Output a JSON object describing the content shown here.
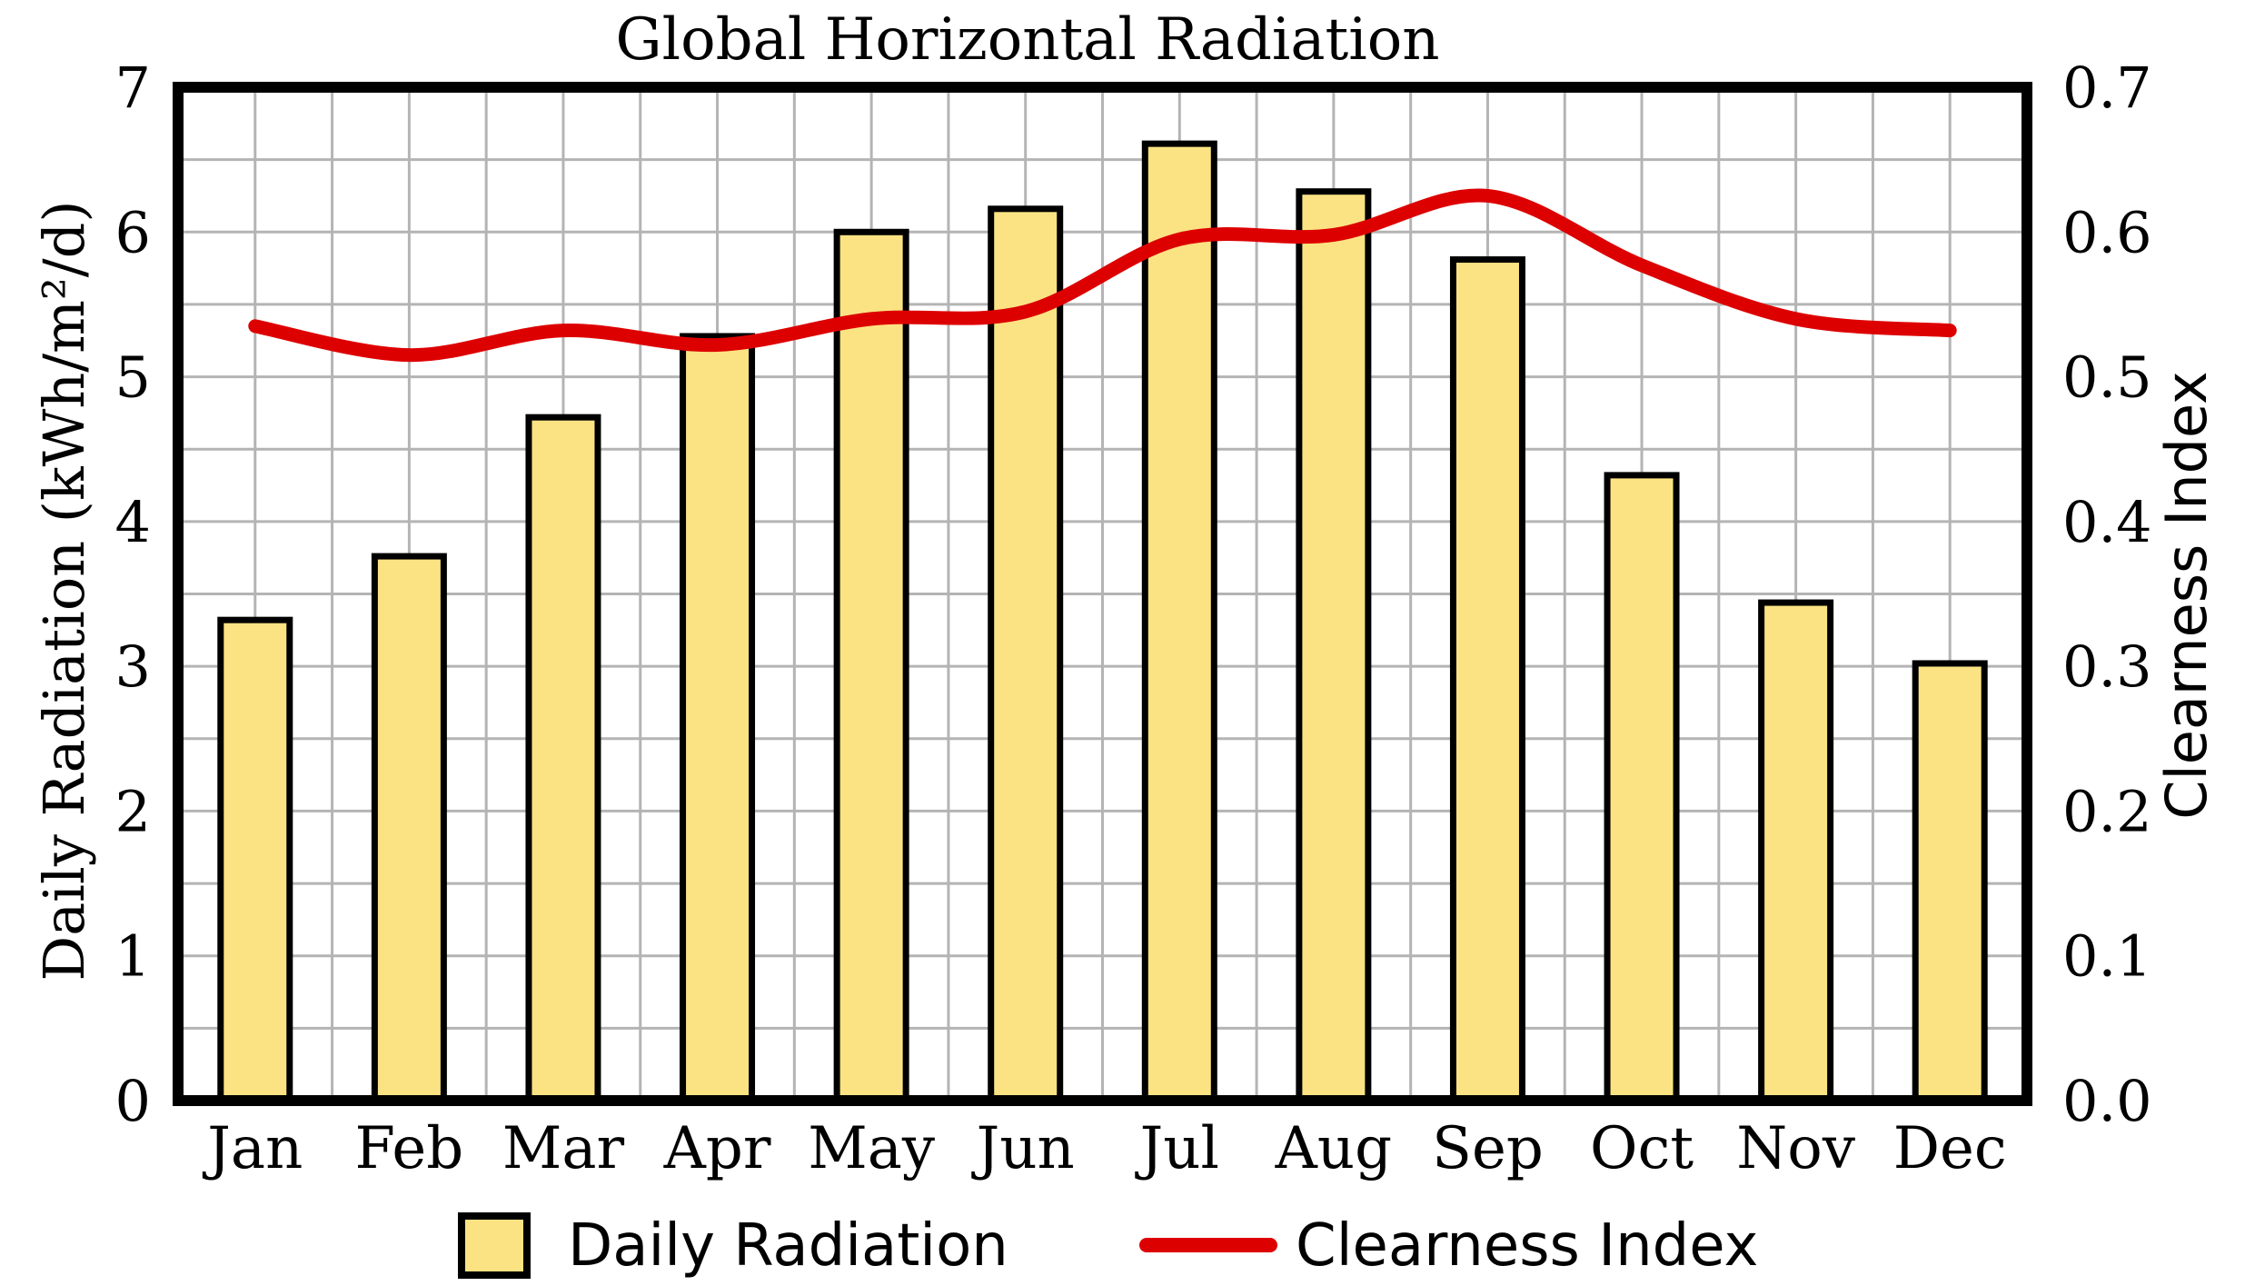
{
  "chart_data": {
    "type": "bar",
    "title": "Global Horizontal Radiation",
    "categories": [
      "Jan",
      "Feb",
      "Mar",
      "Apr",
      "May",
      "Jun",
      "Jul",
      "Aug",
      "Sep",
      "Oct",
      "Nov",
      "Dec"
    ],
    "series": [
      {
        "name": "Daily Radiation",
        "type": "bar",
        "axis": "left",
        "values": [
          3.32,
          3.76,
          4.72,
          5.28,
          6.0,
          6.16,
          6.61,
          6.28,
          5.81,
          4.32,
          3.44,
          3.02
        ],
        "color": "#fbe383"
      },
      {
        "name": "Clearness Index",
        "type": "line",
        "axis": "right",
        "values": [
          0.535,
          0.515,
          0.532,
          0.522,
          0.54,
          0.545,
          0.595,
          0.598,
          0.625,
          0.577,
          0.54,
          0.532
        ],
        "color": "#dd0000"
      }
    ],
    "ylabel": "Daily Radiation (kWh/m²/d)",
    "y2label": "Clearness Index",
    "ylim": [
      0,
      7
    ],
    "y2lim": [
      0,
      0.7
    ],
    "yticks": [
      "0",
      "1",
      "2",
      "3",
      "4",
      "5",
      "6",
      "7"
    ],
    "y2ticks": [
      "0.0",
      "0.1",
      "0.2",
      "0.3",
      "0.4",
      "0.5",
      "0.6",
      "0.7"
    ],
    "grid": true,
    "legend": {
      "position": "bottom",
      "entries": [
        "Daily Radiation",
        "Clearness Index"
      ]
    }
  }
}
